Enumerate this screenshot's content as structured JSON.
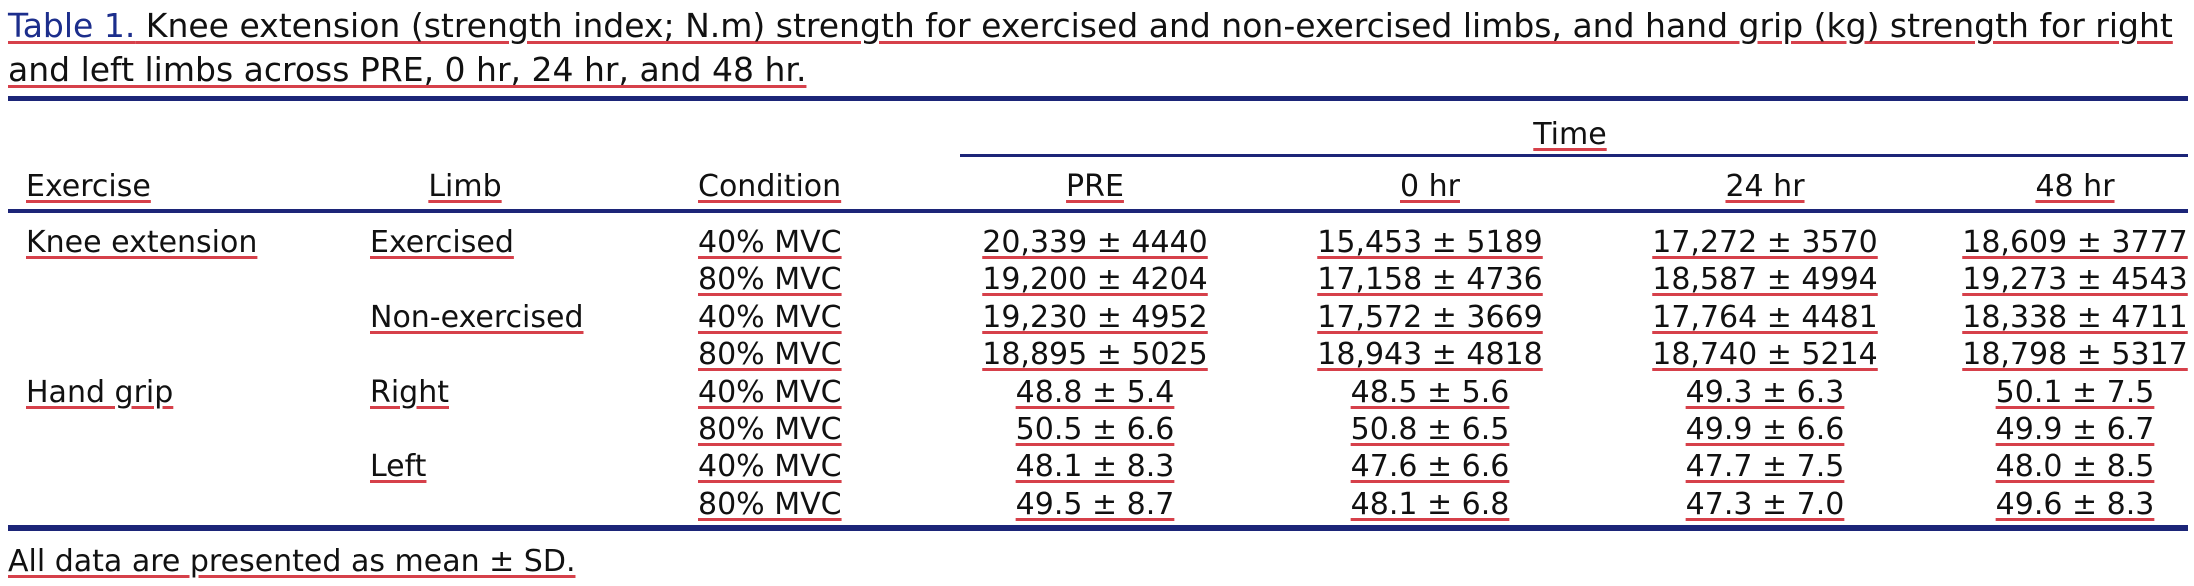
{
  "caption": {
    "label": "Table 1.",
    "line1": " Knee extension (strength index; N.m) strength for exercised and non-exercised limbs, and hand grip (kg) strength for right",
    "line2": "and left limbs across PRE, 0 hr, 24 hr, and 48 hr."
  },
  "header": {
    "group": "Time",
    "columns": [
      "Exercise",
      "Limb",
      "Condition",
      "PRE",
      "0 hr",
      "24 hr",
      "48 hr"
    ]
  },
  "rows": [
    {
      "exercise": "Knee extension",
      "limb": "Exercised",
      "condition": "40% MVC",
      "values": [
        "20,339 ± 4440",
        "15,453 ± 5189",
        "17,272 ± 3570",
        "18,609 ± 3777"
      ]
    },
    {
      "exercise": "",
      "limb": "",
      "condition": "80% MVC",
      "values": [
        "19,200 ± 4204",
        "17,158 ± 4736",
        "18,587 ± 4994",
        "19,273 ± 4543"
      ]
    },
    {
      "exercise": "",
      "limb": "Non-exercised",
      "condition": "40% MVC",
      "values": [
        "19,230 ± 4952",
        "17,572 ± 3669",
        "17,764 ± 4481",
        "18,338 ± 4711"
      ]
    },
    {
      "exercise": "",
      "limb": "",
      "condition": "80% MVC",
      "values": [
        "18,895 ± 5025",
        "18,943 ± 4818",
        "18,740 ± 5214",
        "18,798 ± 5317"
      ]
    },
    {
      "exercise": "Hand grip",
      "limb": "Right",
      "condition": "40% MVC",
      "values": [
        "48.8 ± 5.4",
        "48.5 ± 5.6",
        "49.3 ± 6.3",
        "50.1 ± 7.5"
      ]
    },
    {
      "exercise": "",
      "limb": "",
      "condition": "80% MVC",
      "values": [
        "50.5 ± 6.6",
        "50.8 ± 6.5",
        "49.9 ± 6.6",
        "49.9 ± 6.7"
      ]
    },
    {
      "exercise": "",
      "limb": "Left",
      "condition": "40% MVC",
      "values": [
        "48.1 ± 8.3",
        "47.6 ± 6.6",
        "47.7 ± 7.5",
        "48.0 ± 8.5"
      ]
    },
    {
      "exercise": "",
      "limb": "",
      "condition": "80% MVC",
      "values": [
        "49.5 ± 8.7",
        "48.1 ± 6.8",
        "47.3 ± 7.0",
        "49.6 ± 8.3"
      ]
    }
  ],
  "footnote": "All data are presented as mean ± SD.",
  "colors": {
    "rule": "#1c2578",
    "label": "#1c2e8c",
    "underline": "#d6404a"
  }
}
